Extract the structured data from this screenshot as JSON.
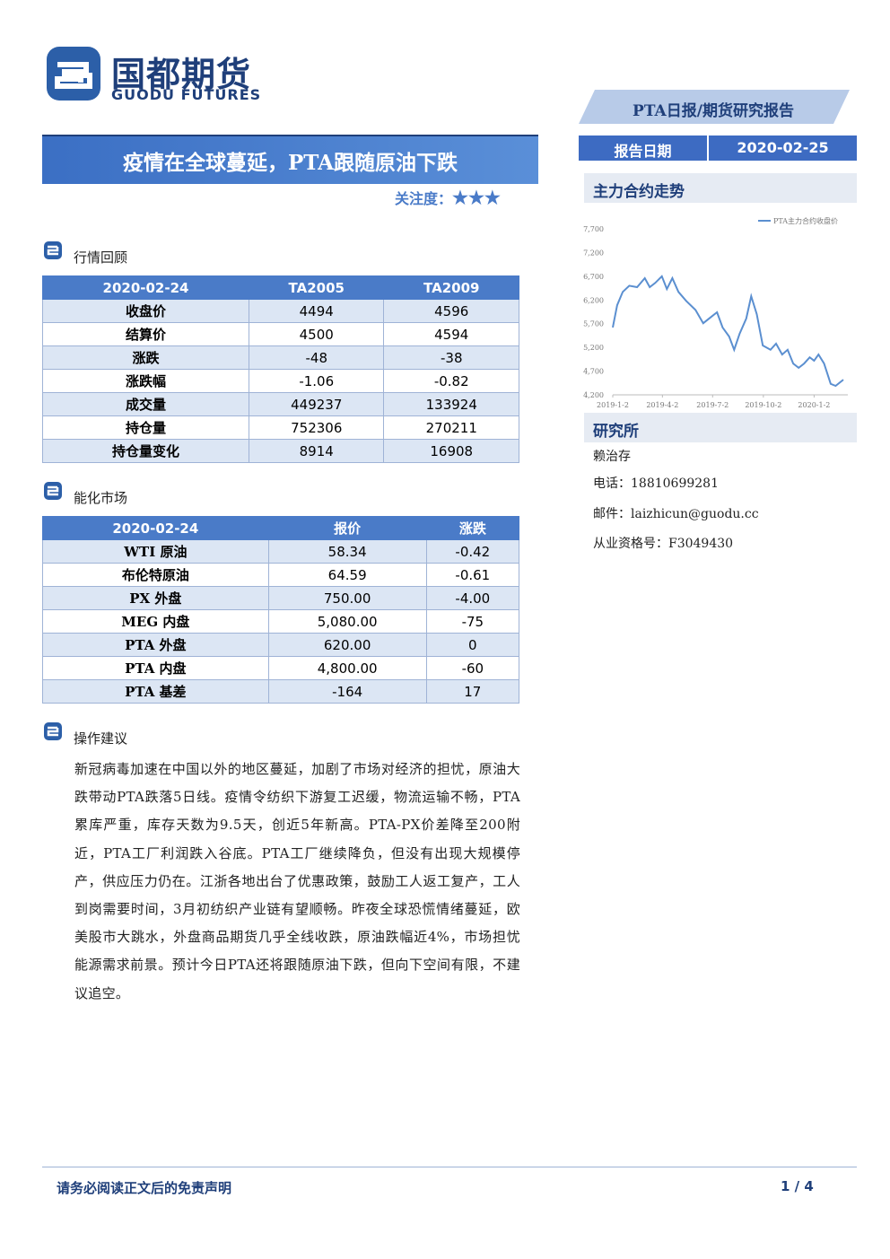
{
  "header": {
    "logo_cn": "国都期货",
    "logo_en": "GUODU FUTURES",
    "report_type": "PTA日报/期货研究报告",
    "date_label": "报告日期",
    "date": "2020-02-25"
  },
  "title": "疫情在全球蔓延，PTA跟随原油下跌",
  "attention_label": "关注度：",
  "attention_stars": "★★★",
  "market_review": {
    "heading": "行情回顾",
    "table": {
      "header": [
        "2020-02-24",
        "TA2005",
        "TA2009"
      ],
      "rows": [
        [
          "收盘价",
          "4494",
          "4596"
        ],
        [
          "结算价",
          "4500",
          "4594"
        ],
        [
          "涨跌",
          "-48",
          "-38"
        ],
        [
          "涨跌幅",
          "-1.06",
          "-0.82"
        ],
        [
          "成交量",
          "449237",
          "133924"
        ],
        [
          "持仓量",
          "752306",
          "270211"
        ],
        [
          "持仓量变化",
          "8914",
          "16908"
        ]
      ]
    }
  },
  "energy_market": {
    "heading": "能化市场",
    "table": {
      "header": [
        "2020-02-24",
        "报价",
        "涨跌"
      ],
      "rows": [
        [
          "WTI 原油",
          "58.34",
          "-0.42"
        ],
        [
          "布伦特原油",
          "64.59",
          "-0.61"
        ],
        [
          "PX 外盘",
          "750.00",
          "-4.00"
        ],
        [
          "MEG 内盘",
          "5,080.00",
          "-75"
        ],
        [
          "PTA 外盘",
          "620.00",
          "0"
        ],
        [
          "PTA 内盘",
          "4,800.00",
          "-60"
        ],
        [
          "PTA 基差",
          "-164",
          "17"
        ]
      ]
    }
  },
  "advice": {
    "heading": "操作建议",
    "text": "新冠病毒加速在中国以外的地区蔓延，加剧了市场对经济的担忧，原油大跌带动PTA跌落5日线。疫情令纺织下游复工迟缓，物流运输不畅，PTA累库严重，库存天数为9.5天，创近5年新高。PTA-PX价差降至200附近，PTA工厂利润跌入谷底。PTA工厂继续降负，但没有出现大规模停产，供应压力仍在。江浙各地出台了优惠政策，鼓励工人返工复产，工人到岗需要时间，3月初纺织产业链有望顺畅。昨夜全球恐慌情绪蔓延，欧美股市大跳水，外盘商品期货几乎全线收跌，原油跌幅近4%，市场担忧能源需求前景。预计今日PTA还将跟随原油下跌，但向下空间有限，不建议追空。"
  },
  "sidebar": {
    "chart_heading": "主力合约走势",
    "institute_heading": "研究所",
    "analyst": "赖治存",
    "phone": "电话：18810699281",
    "email": "邮件：laizhicun@guodu.cc",
    "license": "从业资格号：F3049430"
  },
  "chart_data": {
    "type": "line",
    "x": [
      "2019-01-02",
      "2019-01-10",
      "2019-01-20",
      "2019-02-01",
      "2019-02-15",
      "2019-03-01",
      "2019-03-10",
      "2019-03-20",
      "2019-04-01",
      "2019-04-10",
      "2019-04-20",
      "2019-05-01",
      "2019-05-15",
      "2019-06-01",
      "2019-06-15",
      "2019-07-01",
      "2019-07-10",
      "2019-07-20",
      "2019-08-01",
      "2019-08-10",
      "2019-08-20",
      "2019-09-01",
      "2019-09-10",
      "2019-09-20",
      "2019-10-01",
      "2019-10-15",
      "2019-10-25",
      "2019-11-05",
      "2019-11-15",
      "2019-11-25",
      "2019-12-05",
      "2019-12-15",
      "2019-12-25",
      "2020-01-02",
      "2020-01-10",
      "2020-01-20",
      "2020-02-01",
      "2020-02-10",
      "2020-02-24"
    ],
    "series": [
      {
        "name": "PTA主力合约收盘价",
        "color": "#5b8fd0",
        "values": [
          5620,
          6090,
          6370,
          6500,
          6470,
          6660,
          6470,
          6560,
          6700,
          6430,
          6660,
          6370,
          6180,
          5990,
          5710,
          5860,
          5940,
          5620,
          5430,
          5150,
          5490,
          5810,
          6280,
          5900,
          5240,
          5150,
          5280,
          5050,
          5150,
          4860,
          4770,
          4860,
          4990,
          4920,
          5050,
          4860,
          4430,
          4390,
          4520
        ]
      }
    ],
    "xlim": [
      "2019-01-02",
      "2020-02-24"
    ],
    "xticks": [
      {
        "value": "2019-01-02",
        "label": "2019-1-2"
      },
      {
        "value": "2019-04-02",
        "label": "2019-4-2"
      },
      {
        "value": "2019-07-02",
        "label": "2019-7-2"
      },
      {
        "value": "2019-10-02",
        "label": "2019-10-2"
      },
      {
        "value": "2020-01-02",
        "label": "2020-1-2"
      }
    ],
    "ylim": [
      4200,
      7700
    ],
    "yticks": [
      {
        "value": 4200,
        "label": "4,200"
      },
      {
        "value": 4700,
        "label": "4,700"
      },
      {
        "value": 5200,
        "label": "5,200"
      },
      {
        "value": 5700,
        "label": "5,700"
      },
      {
        "value": 6200,
        "label": "6,200"
      },
      {
        "value": 6700,
        "label": "6,700"
      },
      {
        "value": 7200,
        "label": "7,200"
      },
      {
        "value": 7700,
        "label": "7,700"
      }
    ],
    "legend": "top-right"
  },
  "footer": {
    "disclaimer": "请务必阅读正文后的免责声明",
    "page": "1 / 4"
  }
}
